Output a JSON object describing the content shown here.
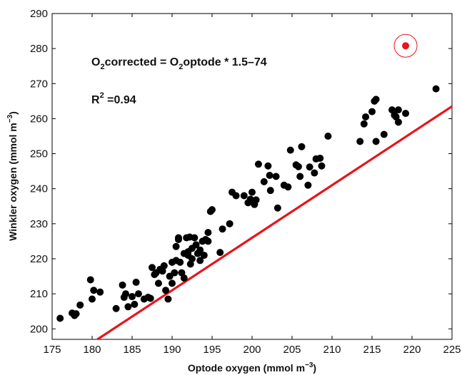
{
  "chart_data": {
    "type": "scatter",
    "title": "",
    "xlabel": "Optode oxygen (mmol m",
    "xlabel_exp": "−3",
    "xlabel_close": ")",
    "ylabel": "Winkler oxygen (mmol m",
    "ylabel_exp": "−3",
    "ylabel_close": ")",
    "xlim": [
      175,
      225
    ],
    "ylim": [
      197,
      290
    ],
    "x_ticks": [
      175,
      180,
      185,
      190,
      195,
      200,
      205,
      210,
      215,
      220,
      225
    ],
    "y_ticks": [
      200,
      210,
      220,
      230,
      240,
      250,
      260,
      270,
      280,
      290
    ],
    "grid": false,
    "annotations": {
      "equation": {
        "O1": "O",
        "sub1": "2",
        "mid": "corrected = O",
        "sub2": "2",
        "tail": "optode * 1.5–74"
      },
      "r2": {
        "R": "R",
        "sup": "2",
        "tail": " =0.94"
      }
    },
    "fit_line": {
      "slope": 1.5,
      "intercept": -74,
      "color": "#e8141b"
    },
    "point_color": "#000000",
    "outlier_color": "#e8141b",
    "outlier": {
      "x": 219.2,
      "y": 280.8
    },
    "points": [
      {
        "x": 176.0,
        "y": 203.0
      },
      {
        "x": 177.5,
        "y": 204.5
      },
      {
        "x": 177.8,
        "y": 203.8
      },
      {
        "x": 178.0,
        "y": 204.3
      },
      {
        "x": 178.5,
        "y": 206.8
      },
      {
        "x": 179.8,
        "y": 214.0
      },
      {
        "x": 180.0,
        "y": 208.5
      },
      {
        "x": 180.2,
        "y": 211.0
      },
      {
        "x": 181.0,
        "y": 210.5
      },
      {
        "x": 183.0,
        "y": 205.8
      },
      {
        "x": 183.8,
        "y": 212.5
      },
      {
        "x": 184.0,
        "y": 209.0
      },
      {
        "x": 184.2,
        "y": 210.0
      },
      {
        "x": 184.5,
        "y": 206.3
      },
      {
        "x": 185.0,
        "y": 209.2
      },
      {
        "x": 185.3,
        "y": 207.0
      },
      {
        "x": 185.5,
        "y": 213.3
      },
      {
        "x": 185.8,
        "y": 210.0
      },
      {
        "x": 186.5,
        "y": 208.5
      },
      {
        "x": 187.0,
        "y": 209.0
      },
      {
        "x": 187.3,
        "y": 208.7
      },
      {
        "x": 187.5,
        "y": 217.5
      },
      {
        "x": 187.8,
        "y": 215.5
      },
      {
        "x": 188.0,
        "y": 216.0
      },
      {
        "x": 188.3,
        "y": 213.0
      },
      {
        "x": 188.5,
        "y": 217.0
      },
      {
        "x": 188.8,
        "y": 216.5
      },
      {
        "x": 189.0,
        "y": 218.0
      },
      {
        "x": 189.2,
        "y": 211.0
      },
      {
        "x": 189.5,
        "y": 208.5
      },
      {
        "x": 189.7,
        "y": 215.0
      },
      {
        "x": 190.0,
        "y": 213.0
      },
      {
        "x": 190.0,
        "y": 219.0
      },
      {
        "x": 190.3,
        "y": 216.0
      },
      {
        "x": 190.5,
        "y": 219.5
      },
      {
        "x": 190.5,
        "y": 223.5
      },
      {
        "x": 190.8,
        "y": 226.0
      },
      {
        "x": 190.8,
        "y": 225.5
      },
      {
        "x": 191.0,
        "y": 219.0
      },
      {
        "x": 191.2,
        "y": 216.0
      },
      {
        "x": 191.5,
        "y": 214.5
      },
      {
        "x": 191.5,
        "y": 221.5
      },
      {
        "x": 191.8,
        "y": 226.0
      },
      {
        "x": 192.0,
        "y": 221.0
      },
      {
        "x": 192.0,
        "y": 222.0
      },
      {
        "x": 192.2,
        "y": 226.2
      },
      {
        "x": 192.3,
        "y": 218.5
      },
      {
        "x": 192.5,
        "y": 220.0
      },
      {
        "x": 192.5,
        "y": 223.0
      },
      {
        "x": 192.8,
        "y": 226.0
      },
      {
        "x": 193.0,
        "y": 224.0
      },
      {
        "x": 193.2,
        "y": 221.5
      },
      {
        "x": 193.5,
        "y": 219.5
      },
      {
        "x": 193.5,
        "y": 222.5
      },
      {
        "x": 193.8,
        "y": 225.0
      },
      {
        "x": 194.0,
        "y": 221.0
      },
      {
        "x": 194.2,
        "y": 225.5
      },
      {
        "x": 194.5,
        "y": 227.5
      },
      {
        "x": 194.5,
        "y": 225.0
      },
      {
        "x": 194.8,
        "y": 233.5
      },
      {
        "x": 195.0,
        "y": 234.0
      },
      {
        "x": 196.0,
        "y": 221.8
      },
      {
        "x": 196.3,
        "y": 228.5
      },
      {
        "x": 197.2,
        "y": 230.0
      },
      {
        "x": 197.5,
        "y": 239.0
      },
      {
        "x": 198.0,
        "y": 238.0
      },
      {
        "x": 199.0,
        "y": 238.0
      },
      {
        "x": 199.5,
        "y": 236.0
      },
      {
        "x": 199.8,
        "y": 237.0
      },
      {
        "x": 200.0,
        "y": 239.0
      },
      {
        "x": 200.3,
        "y": 235.5
      },
      {
        "x": 200.5,
        "y": 236.8
      },
      {
        "x": 200.8,
        "y": 247.0
      },
      {
        "x": 201.5,
        "y": 242.0
      },
      {
        "x": 202.0,
        "y": 246.5
      },
      {
        "x": 202.2,
        "y": 243.8
      },
      {
        "x": 202.3,
        "y": 239.5
      },
      {
        "x": 203.0,
        "y": 243.5
      },
      {
        "x": 203.2,
        "y": 234.5
      },
      {
        "x": 204.0,
        "y": 241.0
      },
      {
        "x": 204.5,
        "y": 240.5
      },
      {
        "x": 204.8,
        "y": 251.0
      },
      {
        "x": 205.5,
        "y": 246.8
      },
      {
        "x": 205.8,
        "y": 246.3
      },
      {
        "x": 206.0,
        "y": 243.5
      },
      {
        "x": 206.2,
        "y": 252.0
      },
      {
        "x": 207.0,
        "y": 241.0
      },
      {
        "x": 207.2,
        "y": 246.2
      },
      {
        "x": 207.8,
        "y": 244.5
      },
      {
        "x": 208.0,
        "y": 248.5
      },
      {
        "x": 208.5,
        "y": 248.7
      },
      {
        "x": 208.7,
        "y": 246.5
      },
      {
        "x": 209.5,
        "y": 255.0
      },
      {
        "x": 213.5,
        "y": 253.5
      },
      {
        "x": 214.0,
        "y": 258.5
      },
      {
        "x": 214.2,
        "y": 260.5
      },
      {
        "x": 215.0,
        "y": 262.0
      },
      {
        "x": 215.3,
        "y": 265.0
      },
      {
        "x": 215.5,
        "y": 265.5
      },
      {
        "x": 215.5,
        "y": 253.5
      },
      {
        "x": 216.5,
        "y": 255.5
      },
      {
        "x": 217.5,
        "y": 262.5
      },
      {
        "x": 217.8,
        "y": 261.0
      },
      {
        "x": 218.0,
        "y": 260.5
      },
      {
        "x": 218.3,
        "y": 259.0
      },
      {
        "x": 218.3,
        "y": 262.5
      },
      {
        "x": 219.2,
        "y": 261.5
      },
      {
        "x": 223.0,
        "y": 268.5
      }
    ]
  }
}
